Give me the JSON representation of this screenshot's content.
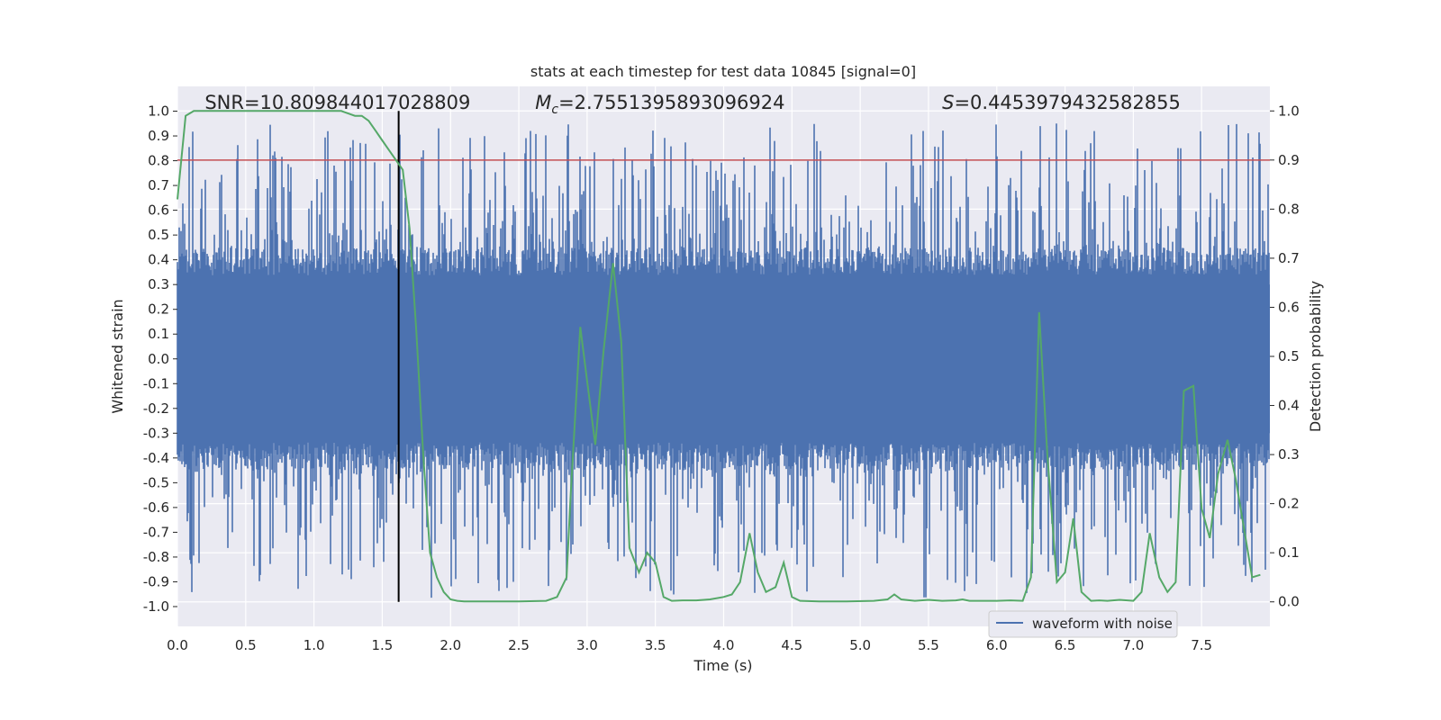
{
  "chart_data": {
    "type": "line",
    "title": "stats at each timestep for test data 10845 [signal=0]",
    "xlabel": "Time (s)",
    "ylabel": "Whitened strain",
    "ylabel_right": "Detection probability",
    "xlim": [
      0.0,
      8.0
    ],
    "ylim": [
      -1.08,
      1.1
    ],
    "ylim_right": [
      -0.05,
      1.05
    ],
    "x_ticks": [
      0.0,
      0.5,
      1.0,
      1.5,
      2.0,
      2.5,
      3.0,
      3.5,
      4.0,
      4.5,
      5.0,
      5.5,
      6.0,
      6.5,
      7.0,
      7.5
    ],
    "x_tick_labels": [
      "0.0",
      "0.5",
      "1.0",
      "1.5",
      "2.0",
      "2.5",
      "3.0",
      "3.5",
      "4.0",
      "4.5",
      "5.0",
      "5.5",
      "6.0",
      "6.5",
      "7.0",
      "7.5"
    ],
    "y_ticks": [
      -1.0,
      -0.9,
      -0.8,
      -0.7,
      -0.6,
      -0.5,
      -0.4,
      -0.3,
      -0.2,
      -0.1,
      0.0,
      0.1,
      0.2,
      0.3,
      0.4,
      0.5,
      0.6,
      0.7,
      0.8,
      0.9,
      1.0
    ],
    "y_tick_labels": [
      "-1.0",
      "-0.9",
      "-0.8",
      "-0.7",
      "-0.6",
      "-0.5",
      "-0.4",
      "-0.3",
      "-0.2",
      "-0.1",
      "0.0",
      "0.1",
      "0.2",
      "0.3",
      "0.4",
      "0.5",
      "0.6",
      "0.7",
      "0.8",
      "0.9",
      "1.0"
    ],
    "y_ticks_right": [
      0.0,
      0.1,
      0.2,
      0.3,
      0.4,
      0.5,
      0.6,
      0.7,
      0.8,
      0.9,
      1.0
    ],
    "y_tick_labels_right": [
      "0.0",
      "0.1",
      "0.2",
      "0.3",
      "0.4",
      "0.5",
      "0.6",
      "0.7",
      "0.8",
      "0.9",
      "1.0"
    ],
    "grid": true,
    "legend_position": "lower-right",
    "series": [
      {
        "name": "waveform with noise",
        "axis": "left",
        "color": "#4c72b0",
        "kind": "noise",
        "amplitude_envelope": 0.45,
        "peak_min": -0.97,
        "peak_max": 0.95
      },
      {
        "axis": "right",
        "color": "#55a868",
        "x": [
          0.0,
          0.06,
          0.12,
          0.3,
          0.5,
          0.7,
          0.9,
          1.0,
          1.1,
          1.2,
          1.3,
          1.35,
          1.4,
          1.45,
          1.5,
          1.55,
          1.6,
          1.65,
          1.7,
          1.75,
          1.8,
          1.85,
          1.9,
          1.95,
          2.0,
          2.05,
          2.1,
          2.3,
          2.5,
          2.7,
          2.78,
          2.85,
          2.88,
          2.95,
          3.0,
          3.06,
          3.12,
          3.19,
          3.25,
          3.31,
          3.38,
          3.44,
          3.5,
          3.56,
          3.62,
          3.7,
          3.8,
          3.9,
          4.0,
          4.06,
          4.12,
          4.19,
          4.25,
          4.31,
          4.38,
          4.44,
          4.5,
          4.56,
          4.7,
          4.9,
          5.1,
          5.2,
          5.25,
          5.3,
          5.4,
          5.5,
          5.6,
          5.7,
          5.75,
          5.8,
          6.0,
          6.1,
          6.19,
          6.25,
          6.31,
          6.37,
          6.44,
          6.5,
          6.56,
          6.62,
          6.69,
          6.75,
          6.81,
          6.9,
          7.0,
          7.06,
          7.12,
          7.19,
          7.25,
          7.31,
          7.37,
          7.44,
          7.5,
          7.56,
          7.62,
          7.69,
          7.75,
          7.81,
          7.87,
          7.93
        ],
        "values": [
          0.82,
          0.99,
          1.0,
          1.0,
          1.0,
          1.0,
          1.0,
          1.0,
          1.0,
          1.0,
          0.99,
          0.99,
          0.98,
          0.96,
          0.94,
          0.92,
          0.9,
          0.88,
          0.76,
          0.55,
          0.3,
          0.1,
          0.05,
          0.02,
          0.005,
          0.002,
          0.001,
          0.001,
          0.001,
          0.002,
          0.01,
          0.05,
          0.22,
          0.56,
          0.45,
          0.32,
          0.51,
          0.69,
          0.53,
          0.11,
          0.06,
          0.1,
          0.08,
          0.01,
          0.002,
          0.003,
          0.003,
          0.005,
          0.01,
          0.015,
          0.04,
          0.14,
          0.06,
          0.02,
          0.03,
          0.08,
          0.01,
          0.002,
          0.001,
          0.001,
          0.002,
          0.005,
          0.015,
          0.005,
          0.002,
          0.004,
          0.002,
          0.003,
          0.005,
          0.002,
          0.002,
          0.003,
          0.002,
          0.05,
          0.59,
          0.3,
          0.04,
          0.06,
          0.17,
          0.02,
          0.002,
          0.003,
          0.002,
          0.004,
          0.002,
          0.02,
          0.14,
          0.05,
          0.02,
          0.04,
          0.43,
          0.44,
          0.19,
          0.13,
          0.26,
          0.33,
          0.25,
          0.15,
          0.05,
          0.055
        ]
      }
    ],
    "threshold_line": {
      "axis": "right",
      "value": 0.9,
      "color": "#c44e52"
    },
    "vertical_marker": {
      "x": 1.62,
      "color": "#000000"
    },
    "annotations": [
      {
        "text": "SNR=10.809844017028809",
        "anchor_x": 0.2
      },
      {
        "text": "=2.7551395893096924",
        "symbol": "M",
        "subscript": "c",
        "anchor_x": 2.62
      },
      {
        "text": "=0.4453979432582855",
        "symbol": "S",
        "anchor_x": 5.6
      }
    ]
  }
}
